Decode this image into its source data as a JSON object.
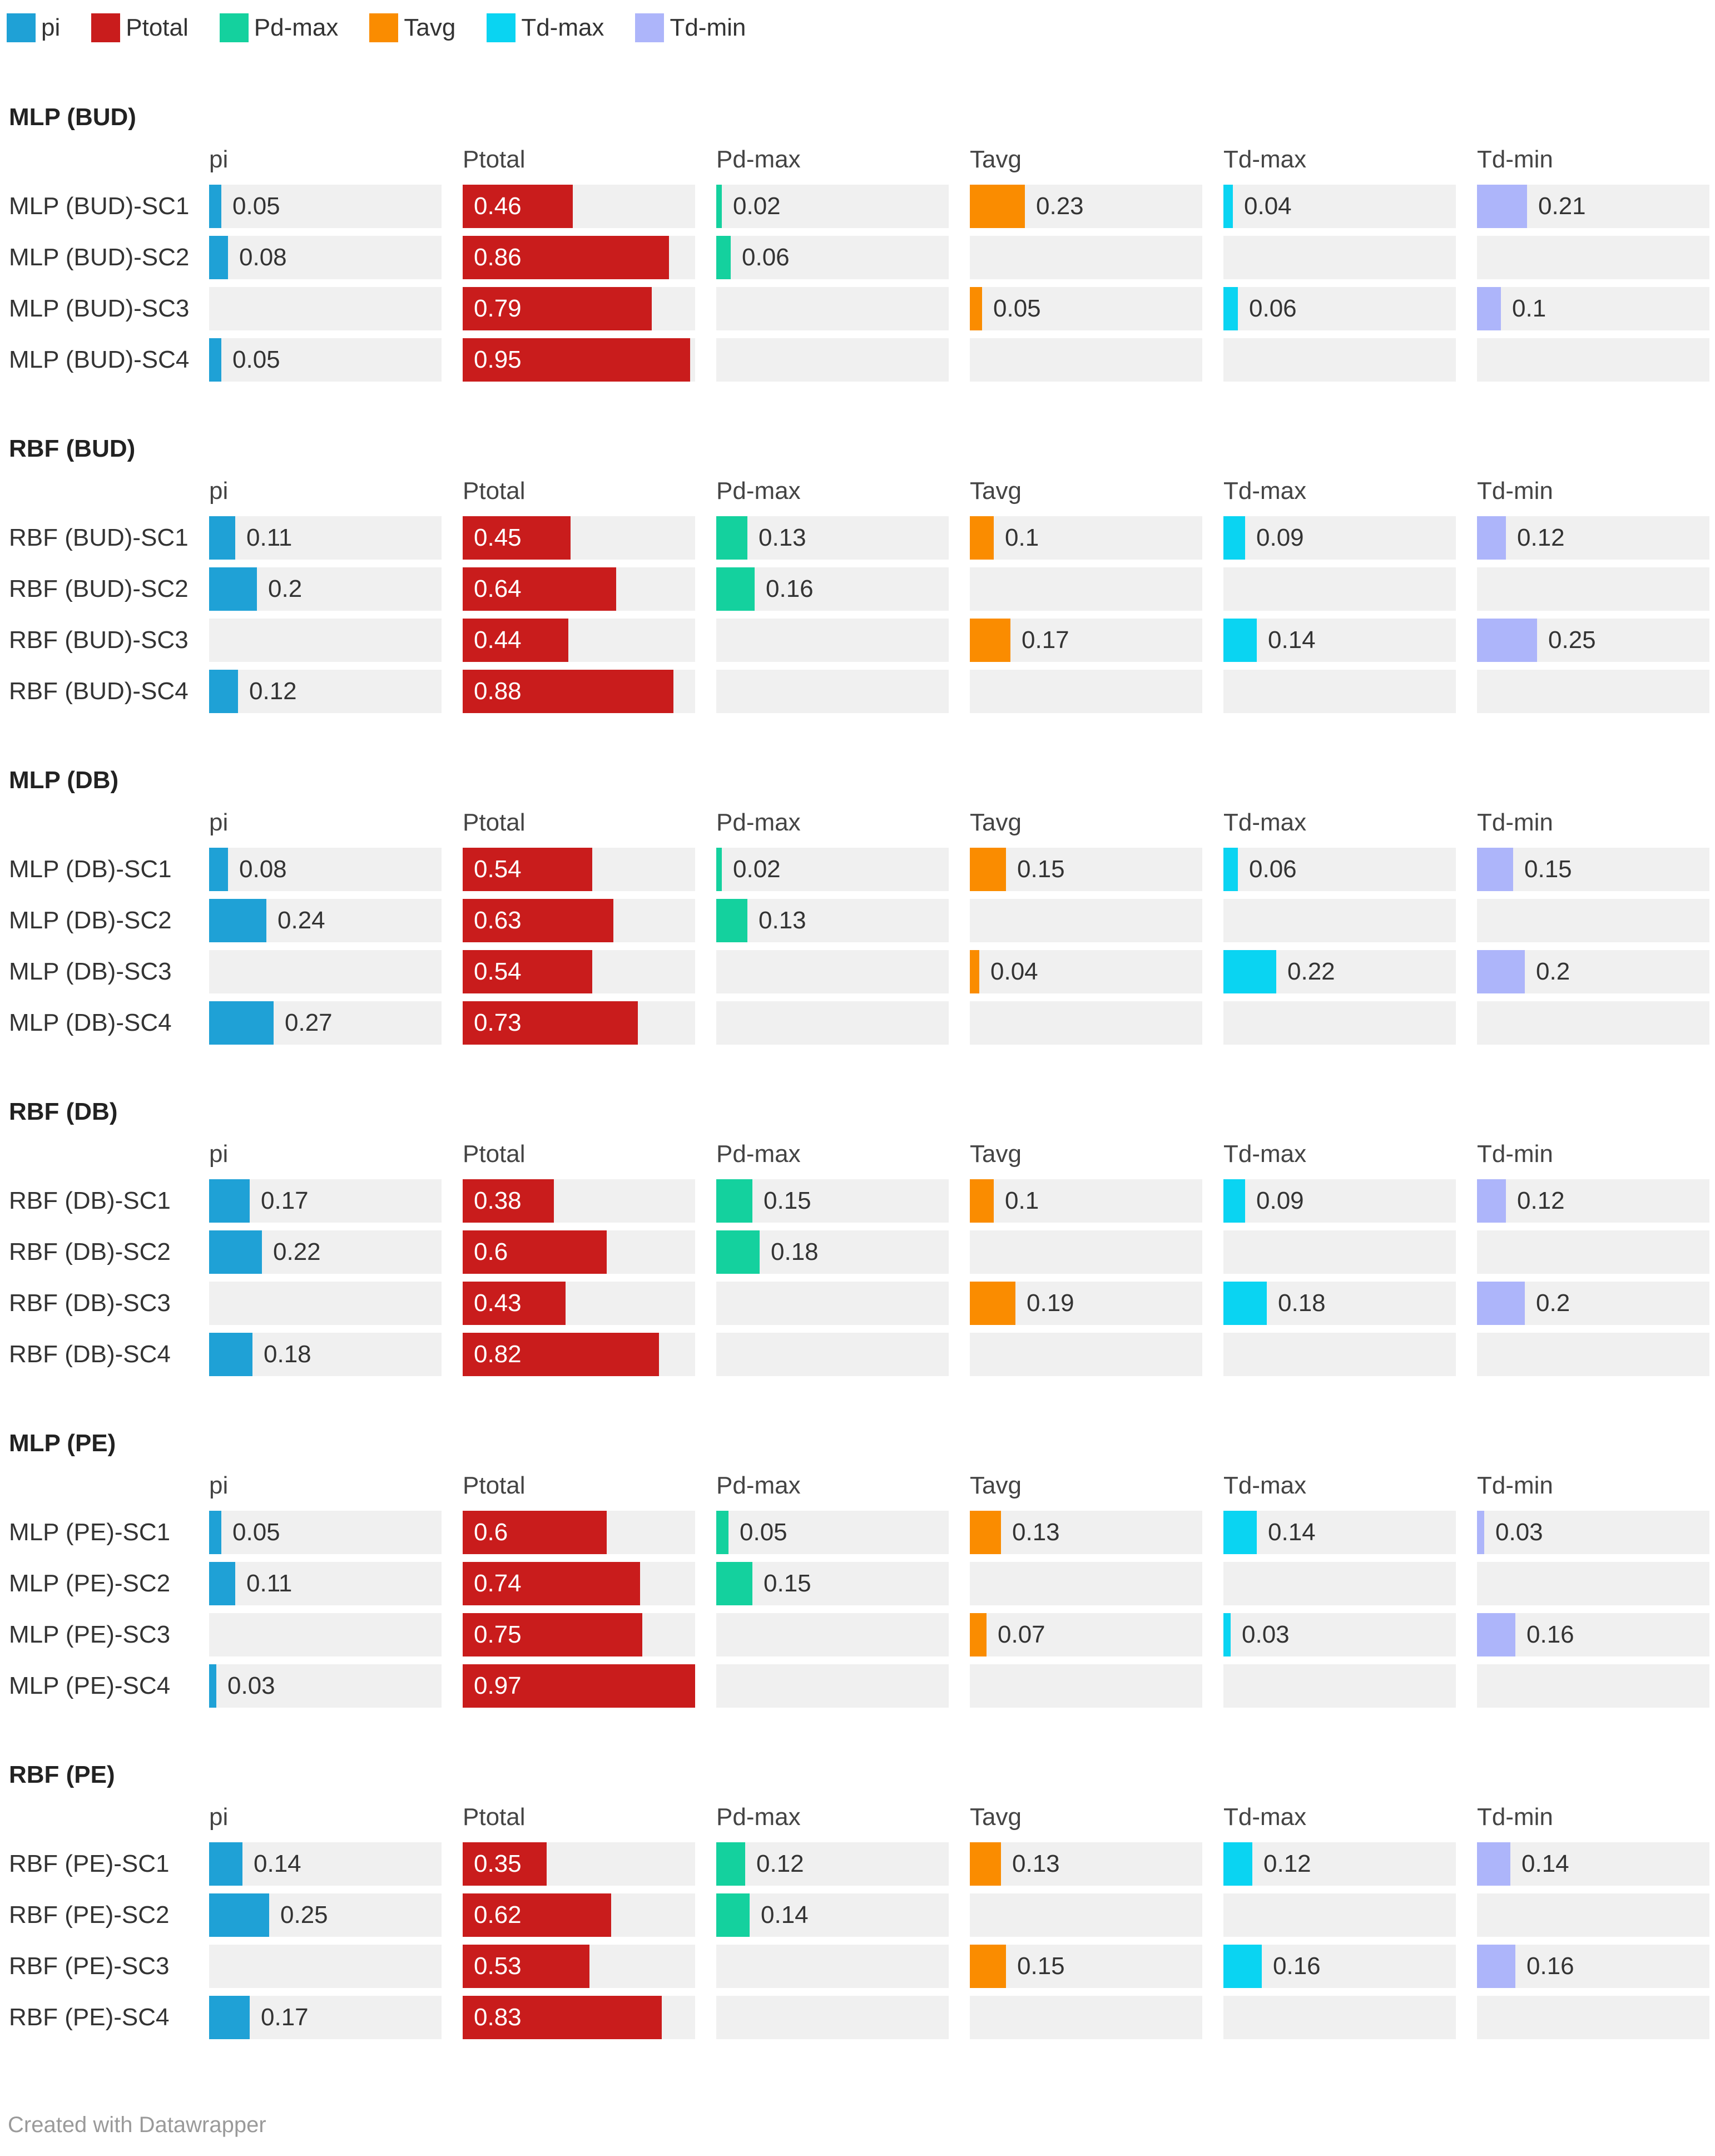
{
  "chart_data": {
    "type": "bar",
    "layout": "small-multiples-table",
    "legend": [
      "pi",
      "Ptotal",
      "Pd-max",
      "Tavg",
      "Td-max",
      "Td-min"
    ],
    "series_colors": {
      "pi": "#1fa1d6",
      "Ptotal": "#c91c1c",
      "Pd-max": "#14d19e",
      "Tavg": "#fa8c00",
      "Td-max": "#0ad4f2",
      "Td-min": "#adb5fa"
    },
    "columns": [
      "pi",
      "Ptotal",
      "Pd-max",
      "Tavg",
      "Td-max",
      "Td-min"
    ],
    "x_range": [
      0,
      0.97
    ],
    "groups": [
      {
        "title": "MLP (BUD)",
        "rows": [
          {
            "label": "MLP (BUD)-SC1",
            "values": [
              0.05,
              0.46,
              0.02,
              0.23,
              0.04,
              0.21
            ]
          },
          {
            "label": "MLP (BUD)-SC2",
            "values": [
              0.08,
              0.86,
              0.06,
              null,
              null,
              null
            ]
          },
          {
            "label": "MLP (BUD)-SC3",
            "values": [
              null,
              0.79,
              null,
              0.05,
              0.06,
              0.1
            ]
          },
          {
            "label": "MLP (BUD)-SC4",
            "values": [
              0.05,
              0.95,
              null,
              null,
              null,
              null
            ]
          }
        ]
      },
      {
        "title": "RBF (BUD)",
        "rows": [
          {
            "label": "RBF (BUD)-SC1",
            "values": [
              0.11,
              0.45,
              0.13,
              0.1,
              0.09,
              0.12
            ]
          },
          {
            "label": "RBF (BUD)-SC2",
            "values": [
              0.2,
              0.64,
              0.16,
              null,
              null,
              null
            ]
          },
          {
            "label": "RBF (BUD)-SC3",
            "values": [
              null,
              0.44,
              null,
              0.17,
              0.14,
              0.25
            ]
          },
          {
            "label": "RBF (BUD)-SC4",
            "values": [
              0.12,
              0.88,
              null,
              null,
              null,
              null
            ]
          }
        ]
      },
      {
        "title": "MLP (DB)",
        "rows": [
          {
            "label": "MLP (DB)-SC1",
            "values": [
              0.08,
              0.54,
              0.02,
              0.15,
              0.06,
              0.15
            ]
          },
          {
            "label": "MLP (DB)-SC2",
            "values": [
              0.24,
              0.63,
              0.13,
              null,
              null,
              null
            ]
          },
          {
            "label": "MLP (DB)-SC3",
            "values": [
              null,
              0.54,
              null,
              0.04,
              0.22,
              0.2
            ]
          },
          {
            "label": "MLP (DB)-SC4",
            "values": [
              0.27,
              0.73,
              null,
              null,
              null,
              null
            ]
          }
        ]
      },
      {
        "title": "RBF (DB)",
        "rows": [
          {
            "label": "RBF (DB)-SC1",
            "values": [
              0.17,
              0.38,
              0.15,
              0.1,
              0.09,
              0.12
            ]
          },
          {
            "label": "RBF (DB)-SC2",
            "values": [
              0.22,
              0.6,
              0.18,
              null,
              null,
              null
            ]
          },
          {
            "label": "RBF (DB)-SC3",
            "values": [
              null,
              0.43,
              null,
              0.19,
              0.18,
              0.2
            ]
          },
          {
            "label": "RBF (DB)-SC4",
            "values": [
              0.18,
              0.82,
              null,
              null,
              null,
              null
            ]
          }
        ]
      },
      {
        "title": "MLP (PE)",
        "rows": [
          {
            "label": "MLP (PE)-SC1",
            "values": [
              0.05,
              0.6,
              0.05,
              0.13,
              0.14,
              0.03
            ]
          },
          {
            "label": "MLP (PE)-SC2",
            "values": [
              0.11,
              0.74,
              0.15,
              null,
              null,
              null
            ]
          },
          {
            "label": "MLP (PE)-SC3",
            "values": [
              null,
              0.75,
              null,
              0.07,
              0.03,
              0.16
            ]
          },
          {
            "label": "MLP (PE)-SC4",
            "values": [
              0.03,
              0.97,
              null,
              null,
              null,
              null
            ]
          }
        ]
      },
      {
        "title": "RBF (PE)",
        "rows": [
          {
            "label": "RBF (PE)-SC1",
            "values": [
              0.14,
              0.35,
              0.12,
              0.13,
              0.12,
              0.14
            ]
          },
          {
            "label": "RBF (PE)-SC2",
            "values": [
              0.25,
              0.62,
              0.14,
              null,
              null,
              null
            ]
          },
          {
            "label": "RBF (PE)-SC3",
            "values": [
              null,
              0.53,
              null,
              0.15,
              0.16,
              0.16
            ]
          },
          {
            "label": "RBF (PE)-SC4",
            "values": [
              0.17,
              0.83,
              null,
              null,
              null,
              null
            ]
          }
        ]
      }
    ]
  },
  "footer": {
    "credit": "Created with Datawrapper"
  }
}
